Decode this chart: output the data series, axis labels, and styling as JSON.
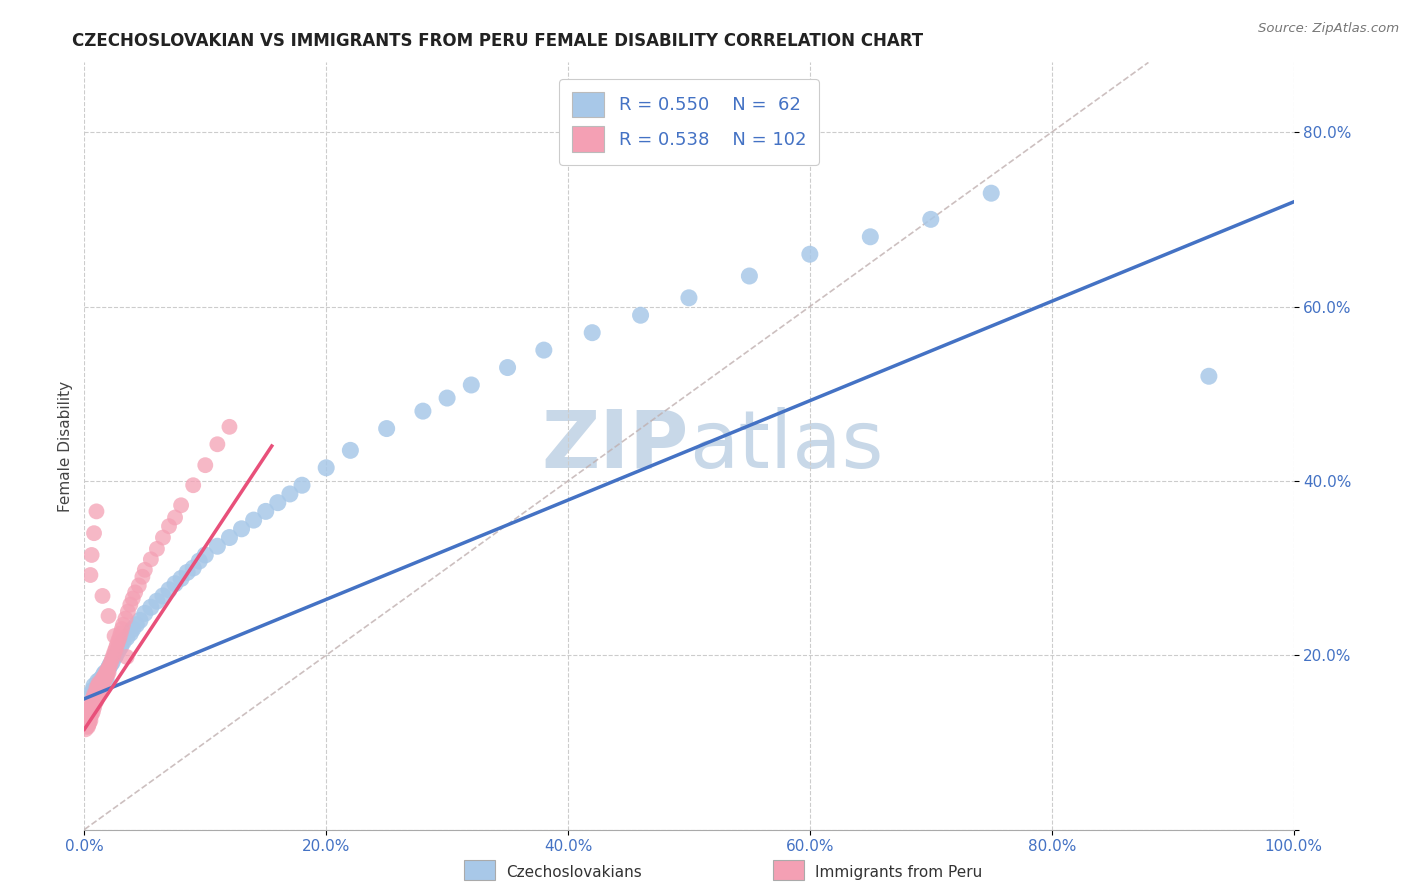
{
  "title": "CZECHOSLOVAKIAN VS IMMIGRANTS FROM PERU FEMALE DISABILITY CORRELATION CHART",
  "source": "Source: ZipAtlas.com",
  "ylabel": "Female Disability",
  "xlim": [
    0,
    1
  ],
  "ylim": [
    0,
    0.88
  ],
  "xticks": [
    0.0,
    0.2,
    0.4,
    0.6,
    0.8,
    1.0
  ],
  "xtick_labels": [
    "0.0%",
    "20.0%",
    "40.0%",
    "60.0%",
    "80.0%",
    "100.0%"
  ],
  "ytick_positions": [
    0.0,
    0.2,
    0.4,
    0.6,
    0.8
  ],
  "ytick_labels": [
    "",
    "20.0%",
    "40.0%",
    "60.0%",
    "80.0%"
  ],
  "blue_color": "#a8c8e8",
  "pink_color": "#f4a0b4",
  "blue_line_color": "#4472c4",
  "pink_line_color": "#e8507a",
  "axis_label_color": "#4472c4",
  "watermark_color": "#c8d8e8",
  "legend_R1": "R = 0.550",
  "legend_N1": "N =  62",
  "legend_R2": "R = 0.538",
  "legend_N2": "N = 102",
  "blue_scatter_x": [
    0.005,
    0.007,
    0.008,
    0.009,
    0.01,
    0.011,
    0.012,
    0.013,
    0.015,
    0.016,
    0.017,
    0.018,
    0.02,
    0.021,
    0.022,
    0.023,
    0.025,
    0.026,
    0.028,
    0.03,
    0.032,
    0.035,
    0.038,
    0.04,
    0.043,
    0.046,
    0.05,
    0.055,
    0.06,
    0.065,
    0.07,
    0.075,
    0.08,
    0.085,
    0.09,
    0.095,
    0.1,
    0.11,
    0.12,
    0.13,
    0.14,
    0.15,
    0.16,
    0.17,
    0.18,
    0.2,
    0.22,
    0.25,
    0.28,
    0.3,
    0.32,
    0.35,
    0.38,
    0.42,
    0.46,
    0.5,
    0.55,
    0.6,
    0.65,
    0.7,
    0.93,
    0.75
  ],
  "blue_scatter_y": [
    0.155,
    0.16,
    0.165,
    0.158,
    0.162,
    0.17,
    0.165,
    0.172,
    0.175,
    0.178,
    0.18,
    0.172,
    0.185,
    0.188,
    0.19,
    0.192,
    0.198,
    0.2,
    0.205,
    0.21,
    0.215,
    0.22,
    0.225,
    0.23,
    0.235,
    0.24,
    0.248,
    0.255,
    0.262,
    0.268,
    0.275,
    0.282,
    0.288,
    0.295,
    0.3,
    0.308,
    0.315,
    0.325,
    0.335,
    0.345,
    0.355,
    0.365,
    0.375,
    0.385,
    0.395,
    0.415,
    0.435,
    0.46,
    0.48,
    0.495,
    0.51,
    0.53,
    0.55,
    0.57,
    0.59,
    0.61,
    0.635,
    0.66,
    0.68,
    0.7,
    0.52,
    0.73
  ],
  "pink_scatter_x": [
    0.001,
    0.001,
    0.001,
    0.002,
    0.002,
    0.002,
    0.002,
    0.003,
    0.003,
    0.003,
    0.003,
    0.003,
    0.003,
    0.004,
    0.004,
    0.004,
    0.004,
    0.004,
    0.005,
    0.005,
    0.005,
    0.005,
    0.005,
    0.006,
    0.006,
    0.006,
    0.006,
    0.007,
    0.007,
    0.007,
    0.007,
    0.008,
    0.008,
    0.008,
    0.008,
    0.009,
    0.009,
    0.009,
    0.01,
    0.01,
    0.01,
    0.01,
    0.011,
    0.011,
    0.011,
    0.012,
    0.012,
    0.012,
    0.013,
    0.013,
    0.014,
    0.014,
    0.015,
    0.015,
    0.016,
    0.016,
    0.017,
    0.017,
    0.018,
    0.018,
    0.019,
    0.019,
    0.02,
    0.02,
    0.021,
    0.022,
    0.023,
    0.024,
    0.025,
    0.026,
    0.027,
    0.028,
    0.029,
    0.03,
    0.031,
    0.032,
    0.034,
    0.036,
    0.038,
    0.04,
    0.042,
    0.045,
    0.048,
    0.05,
    0.055,
    0.06,
    0.065,
    0.07,
    0.075,
    0.08,
    0.09,
    0.1,
    0.11,
    0.12,
    0.01,
    0.008,
    0.006,
    0.005,
    0.015,
    0.02,
    0.025,
    0.035
  ],
  "pink_scatter_y": [
    0.115,
    0.12,
    0.125,
    0.118,
    0.122,
    0.126,
    0.13,
    0.12,
    0.124,
    0.128,
    0.132,
    0.118,
    0.125,
    0.122,
    0.126,
    0.13,
    0.128,
    0.134,
    0.125,
    0.13,
    0.135,
    0.14,
    0.138,
    0.132,
    0.138,
    0.143,
    0.148,
    0.135,
    0.14,
    0.145,
    0.15,
    0.14,
    0.145,
    0.15,
    0.155,
    0.145,
    0.15,
    0.155,
    0.148,
    0.153,
    0.158,
    0.162,
    0.155,
    0.16,
    0.165,
    0.158,
    0.163,
    0.168,
    0.162,
    0.167,
    0.165,
    0.17,
    0.168,
    0.173,
    0.17,
    0.175,
    0.172,
    0.177,
    0.175,
    0.18,
    0.178,
    0.183,
    0.18,
    0.185,
    0.188,
    0.192,
    0.196,
    0.2,
    0.204,
    0.208,
    0.212,
    0.216,
    0.22,
    0.225,
    0.23,
    0.235,
    0.242,
    0.25,
    0.258,
    0.265,
    0.272,
    0.28,
    0.29,
    0.298,
    0.31,
    0.322,
    0.335,
    0.348,
    0.358,
    0.372,
    0.395,
    0.418,
    0.442,
    0.462,
    0.365,
    0.34,
    0.315,
    0.292,
    0.268,
    0.245,
    0.222,
    0.198
  ],
  "blue_trend_x": [
    0.0,
    1.0
  ],
  "blue_trend_y": [
    0.15,
    0.72
  ],
  "pink_trend_x": [
    0.0,
    0.155
  ],
  "pink_trend_y": [
    0.115,
    0.44
  ],
  "ref_line_x": [
    0.0,
    0.88
  ],
  "ref_line_y": [
    0.0,
    0.88
  ],
  "background_color": "#ffffff"
}
